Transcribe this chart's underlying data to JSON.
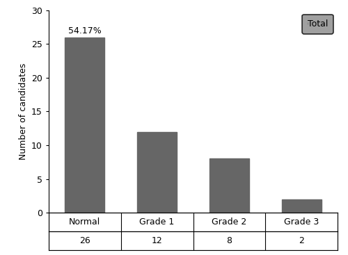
{
  "categories": [
    "Normal",
    "Grade 1",
    "Grade 2",
    "Grade 3"
  ],
  "values": [
    26,
    12,
    8,
    2
  ],
  "counts": [
    "26",
    "12",
    "8",
    "2"
  ],
  "bar_color": "#666666",
  "ylabel": "Number of candidates",
  "ylim": [
    0,
    30
  ],
  "yticks": [
    0,
    5,
    10,
    15,
    20,
    25,
    30
  ],
  "annotation_text": "54.17%",
  "annotation_bar_index": 0,
  "legend_label": "Total",
  "legend_box_color": "#888888",
  "background_color": "#ffffff"
}
